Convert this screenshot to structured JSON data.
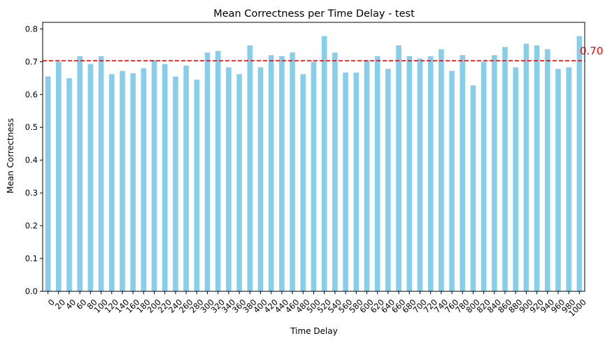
{
  "chart_data": {
    "type": "bar",
    "title": "Mean Correctness per Time Delay - test",
    "xlabel": "Time Delay",
    "ylabel": "Mean Correctness",
    "ylim": [
      0,
      0.82
    ],
    "yticks": [
      "0.0",
      "0.1",
      "0.2",
      "0.3",
      "0.4",
      "0.5",
      "0.6",
      "0.7",
      "0.8"
    ],
    "categories": [
      "0",
      "20",
      "40",
      "60",
      "80",
      "100",
      "120",
      "140",
      "160",
      "180",
      "200",
      "220",
      "240",
      "260",
      "280",
      "300",
      "320",
      "340",
      "360",
      "380",
      "400",
      "420",
      "440",
      "460",
      "480",
      "500",
      "520",
      "540",
      "560",
      "580",
      "600",
      "620",
      "640",
      "660",
      "680",
      "700",
      "720",
      "740",
      "760",
      "780",
      "800",
      "820",
      "840",
      "860",
      "880",
      "900",
      "920",
      "940",
      "960",
      "980",
      "1000"
    ],
    "values": [
      0.655,
      0.7,
      0.65,
      0.717,
      0.693,
      0.717,
      0.662,
      0.672,
      0.665,
      0.68,
      0.705,
      0.693,
      0.655,
      0.688,
      0.645,
      0.728,
      0.733,
      0.683,
      0.662,
      0.75,
      0.683,
      0.72,
      0.717,
      0.728,
      0.662,
      0.7,
      0.778,
      0.728,
      0.667,
      0.667,
      0.705,
      0.717,
      0.678,
      0.75,
      0.717,
      0.71,
      0.717,
      0.738,
      0.672,
      0.72,
      0.628,
      0.7,
      0.72,
      0.745,
      0.683,
      0.755,
      0.75,
      0.738,
      0.678,
      0.683,
      0.778
    ],
    "bar_color": "#87ceeb",
    "reference_line": {
      "value": 0.703,
      "label": "0.70",
      "color": "#ff0000",
      "style": "dashed"
    },
    "grid": false,
    "legend": "none"
  }
}
